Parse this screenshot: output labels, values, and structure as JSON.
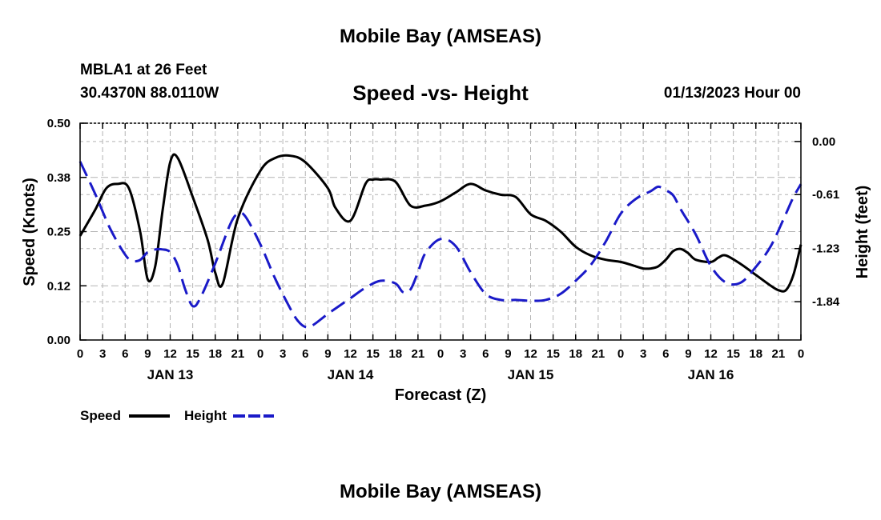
{
  "page": {
    "main_title": "Mobile Bay (AMSEAS)",
    "bottom_title": "Mobile Bay (AMSEAS)",
    "station_name": "MBLA1 at 26 Feet",
    "station_coords": "30.4370N  88.0110W",
    "datetime": "01/13/2023 Hour 00"
  },
  "colors": {
    "speed": "#000000",
    "height": "#1a1ac8",
    "grid": "#b4b4b4"
  },
  "chart_data": {
    "type": "line",
    "title": "Speed -vs- Height",
    "xlabel": "Forecast (Z)",
    "ylabel": "Speed (Knots)",
    "y2label": "Height (feet)",
    "x_unit": "forecast hours",
    "xlim": [
      0,
      96
    ],
    "ylim": [
      0,
      0.5
    ],
    "y2lim": [
      -2.28,
      0.21
    ],
    "x_tick_labels": [
      "0",
      "3",
      "6",
      "9",
      "12",
      "15",
      "18",
      "21",
      "0",
      "3",
      "6",
      "9",
      "12",
      "15",
      "18",
      "21",
      "0",
      "3",
      "6",
      "9",
      "12",
      "15",
      "18",
      "21",
      "0",
      "3",
      "6",
      "9",
      "12",
      "15",
      "18",
      "21",
      "0"
    ],
    "day_labels": [
      {
        "label": "JAN 13",
        "x": 12
      },
      {
        "label": "JAN 14",
        "x": 36
      },
      {
        "label": "JAN 15",
        "x": 60
      },
      {
        "label": "JAN 16",
        "x": 84
      }
    ],
    "y_tick_labels": [
      "0.00",
      "0.12",
      "0.25",
      "0.38",
      "0.50"
    ],
    "y2_tick_labels": [
      "0.00",
      "-0.61",
      "-1.23",
      "-1.84"
    ],
    "series": [
      {
        "name": "Speed",
        "axis": "left",
        "style": "solid",
        "x": [
          0,
          2,
          3.5,
          5,
          6.5,
          8,
          9,
          10,
          11,
          12,
          13,
          15,
          17,
          18,
          19,
          21,
          24,
          26,
          28,
          30,
          33,
          34,
          36,
          38,
          39,
          40,
          42,
          44,
          46,
          48,
          50,
          52,
          54,
          56,
          58,
          60,
          62,
          64,
          66,
          68,
          70,
          72,
          74,
          75,
          76,
          77,
          78,
          79,
          80,
          81,
          82,
          84,
          85,
          86,
          88,
          90,
          92,
          93,
          94,
          95,
          96
        ],
        "values": [
          0.24,
          0.3,
          0.35,
          0.36,
          0.35,
          0.25,
          0.14,
          0.17,
          0.3,
          0.41,
          0.42,
          0.33,
          0.23,
          0.155,
          0.13,
          0.28,
          0.39,
          0.42,
          0.425,
          0.41,
          0.35,
          0.305,
          0.275,
          0.36,
          0.37,
          0.37,
          0.365,
          0.31,
          0.31,
          0.32,
          0.34,
          0.36,
          0.345,
          0.335,
          0.33,
          0.29,
          0.275,
          0.25,
          0.215,
          0.195,
          0.185,
          0.18,
          0.17,
          0.165,
          0.165,
          0.17,
          0.185,
          0.205,
          0.21,
          0.2,
          0.185,
          0.18,
          0.19,
          0.195,
          0.175,
          0.15,
          0.125,
          0.115,
          0.115,
          0.15,
          0.22
        ]
      },
      {
        "name": "Height",
        "axis": "right",
        "style": "dashed",
        "x": [
          0,
          2,
          4,
          6,
          7,
          8,
          9,
          10,
          11,
          12,
          13,
          14,
          15,
          16,
          18,
          20,
          21,
          22,
          24,
          26,
          28,
          29,
          30,
          31,
          33,
          36,
          38,
          40,
          42,
          43,
          44,
          45,
          46,
          48,
          50,
          52,
          54,
          56,
          58,
          60,
          62,
          64,
          66,
          68,
          70,
          72,
          74,
          76,
          77,
          78,
          79,
          80,
          82,
          84,
          86,
          88,
          90,
          92,
          94,
          95,
          96
        ],
        "values": [
          -0.23,
          -0.6,
          -1.0,
          -1.3,
          -1.37,
          -1.36,
          -1.27,
          -1.24,
          -1.24,
          -1.27,
          -1.42,
          -1.7,
          -1.89,
          -1.8,
          -1.4,
          -0.95,
          -0.83,
          -0.86,
          -1.18,
          -1.58,
          -1.92,
          -2.06,
          -2.13,
          -2.11,
          -1.98,
          -1.8,
          -1.68,
          -1.6,
          -1.63,
          -1.73,
          -1.7,
          -1.5,
          -1.28,
          -1.12,
          -1.2,
          -1.5,
          -1.75,
          -1.82,
          -1.82,
          -1.83,
          -1.82,
          -1.75,
          -1.6,
          -1.42,
          -1.15,
          -0.83,
          -0.66,
          -0.57,
          -0.52,
          -0.56,
          -0.62,
          -0.78,
          -1.07,
          -1.43,
          -1.62,
          -1.62,
          -1.44,
          -1.2,
          -0.83,
          -0.64,
          -0.49
        ]
      }
    ],
    "legend": [
      {
        "label": "Speed",
        "style": "solid"
      },
      {
        "label": "Height",
        "style": "dashed"
      }
    ],
    "grid": true
  }
}
